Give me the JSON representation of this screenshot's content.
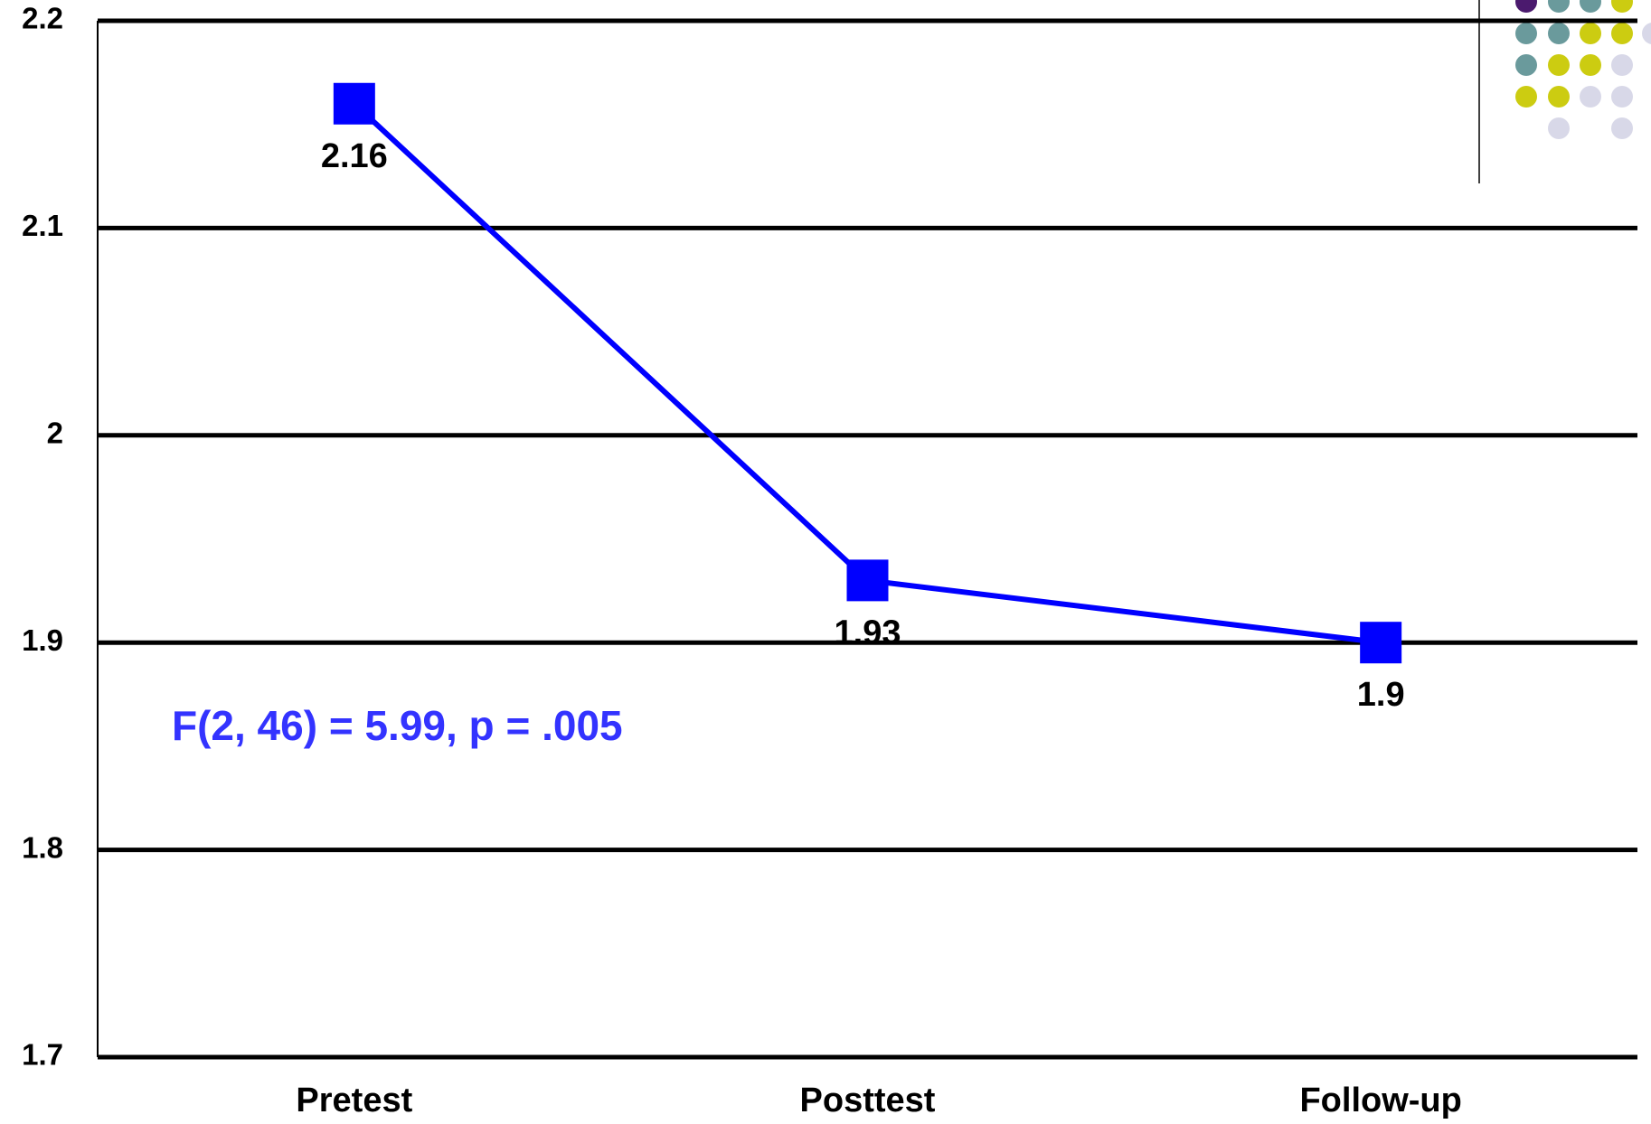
{
  "chart_data": {
    "type": "line",
    "categories": [
      "Pretest",
      "Posttest",
      "Follow-up"
    ],
    "values": [
      2.16,
      1.93,
      1.9
    ],
    "color": "#0000ff",
    "ylim": [
      1.7,
      2.2
    ],
    "yticks": [
      1.7,
      1.8,
      1.9,
      2,
      2.1,
      2.2
    ],
    "grid": true,
    "annotations": [
      "F(2, 46) = 5.99, p = .005"
    ],
    "annotation_color": "#3333ff"
  }
}
